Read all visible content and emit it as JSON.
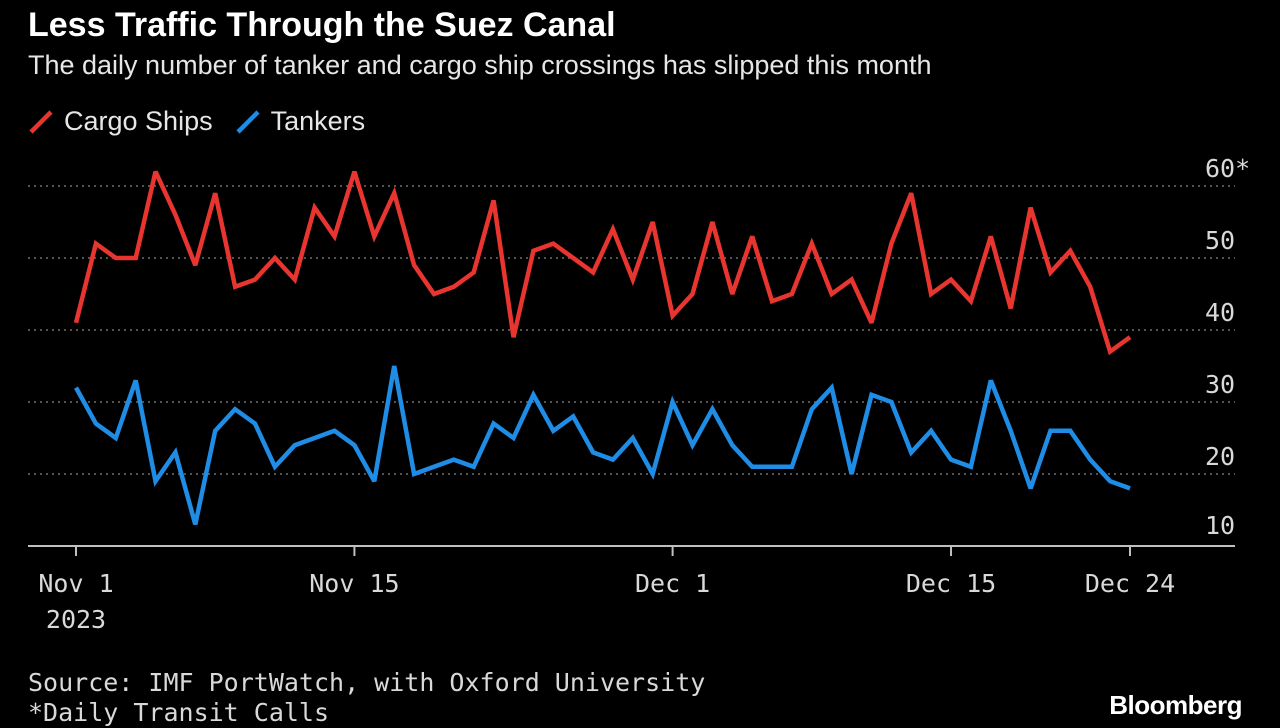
{
  "header": {
    "title": "Less Traffic Through the Suez Canal",
    "subtitle": "The daily number of tanker and cargo ship crossings has slipped this month"
  },
  "legend": [
    {
      "label": "Cargo Ships",
      "color": "#e8352f"
    },
    {
      "label": "Tankers",
      "color": "#1f8ce6"
    }
  ],
  "footer": {
    "source": "Source: IMF PortWatch, with Oxford University",
    "note": "*Daily Transit Calls",
    "brand": "Bloomberg"
  },
  "chart_data": {
    "type": "line",
    "title": "Less Traffic Through the Suez Canal",
    "subtitle": "The daily number of tanker and cargo ship crossings has slipped this month",
    "x_start": "2023-11-01",
    "x_end": "2023-12-24",
    "x_ticks": [
      {
        "date": "2023-11-01",
        "label": "Nov 1",
        "sublabel": "2023"
      },
      {
        "date": "2023-11-15",
        "label": "Nov 15",
        "sublabel": ""
      },
      {
        "date": "2023-12-01",
        "label": "Dec 1",
        "sublabel": ""
      },
      {
        "date": "2023-12-15",
        "label": "Dec 15",
        "sublabel": ""
      },
      {
        "date": "2023-12-24",
        "label": "Dec 24",
        "sublabel": ""
      }
    ],
    "y_ticks": [
      {
        "value": 10,
        "label": "10"
      },
      {
        "value": 20,
        "label": "20"
      },
      {
        "value": 30,
        "label": "30"
      },
      {
        "value": 40,
        "label": "40"
      },
      {
        "value": 50,
        "label": "50"
      },
      {
        "value": 60,
        "label": "60*"
      }
    ],
    "ylim": [
      7,
      62
    ],
    "grid": true,
    "legend_position": "top-left",
    "series": [
      {
        "name": "Cargo Ships",
        "color": "#e8352f",
        "values": [
          41,
          52,
          50,
          50,
          62,
          56,
          49,
          59,
          46,
          47,
          50,
          47,
          57,
          53,
          62,
          53,
          59,
          49,
          45,
          46,
          48,
          58,
          39,
          51,
          52,
          50,
          48,
          54,
          47,
          55,
          42,
          45,
          55,
          45,
          53,
          44,
          45,
          52,
          45,
          47,
          41,
          52,
          59,
          45,
          47,
          44,
          53,
          43,
          57,
          48,
          51,
          46,
          37,
          39
        ]
      },
      {
        "name": "Tankers",
        "color": "#1f8ce6",
        "values": [
          32,
          27,
          25,
          33,
          19,
          23,
          13,
          26,
          29,
          27,
          21,
          24,
          25,
          26,
          24,
          19,
          35,
          20,
          21,
          22,
          21,
          27,
          25,
          31,
          26,
          28,
          23,
          22,
          25,
          20,
          30,
          24,
          29,
          24,
          21,
          21,
          21,
          29,
          32,
          20,
          31,
          30,
          23,
          26,
          22,
          21,
          33,
          26,
          18,
          26,
          26,
          22,
          19,
          18
        ]
      }
    ]
  }
}
